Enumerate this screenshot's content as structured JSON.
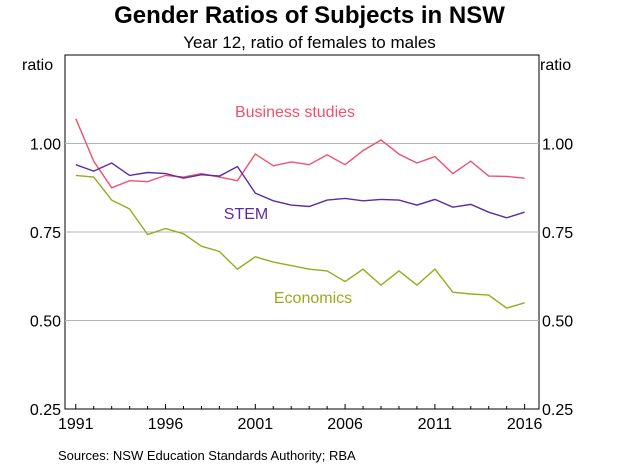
{
  "chart_data": {
    "type": "line",
    "title": "Gender Ratios of Subjects in NSW",
    "subtitle": "Year 12, ratio of females to males",
    "ylabel_left": "ratio",
    "ylabel_right": "ratio",
    "x": [
      1991,
      1992,
      1993,
      1994,
      1995,
      1996,
      1997,
      1998,
      1999,
      2000,
      2001,
      2002,
      2003,
      2004,
      2005,
      2006,
      2007,
      2008,
      2009,
      2010,
      2011,
      2012,
      2013,
      2014,
      2015,
      2016
    ],
    "xlim": [
      1990.4,
      2016.8
    ],
    "xticks": [
      1991,
      1996,
      2001,
      2006,
      2011,
      2016
    ],
    "ylim": [
      0.25,
      1.25
    ],
    "yticks": [
      0.25,
      0.5,
      0.75,
      1.0
    ],
    "ytick_labels": [
      "0.25",
      "0.50",
      "0.75",
      "1.00"
    ],
    "grid": true,
    "series": [
      {
        "name": "Business studies",
        "color": "#f0506e",
        "values": [
          1.07,
          0.95,
          0.875,
          0.895,
          0.892,
          0.91,
          0.905,
          0.915,
          0.905,
          0.895,
          0.97,
          0.937,
          0.948,
          0.94,
          0.968,
          0.94,
          0.98,
          1.01,
          0.97,
          0.945,
          0.963,
          0.915,
          0.95,
          0.908,
          0.907,
          0.902
        ]
      },
      {
        "name": "STEM",
        "color": "#5c2ba0",
        "values": [
          0.94,
          0.922,
          0.945,
          0.91,
          0.918,
          0.915,
          0.902,
          0.912,
          0.908,
          0.935,
          0.86,
          0.838,
          0.826,
          0.822,
          0.84,
          0.845,
          0.838,
          0.842,
          0.84,
          0.826,
          0.842,
          0.82,
          0.828,
          0.806,
          0.79,
          0.806
        ]
      },
      {
        "name": "Economics",
        "color": "#9aaa1e",
        "values": [
          0.91,
          0.905,
          0.84,
          0.815,
          0.743,
          0.76,
          0.745,
          0.71,
          0.695,
          0.645,
          0.68,
          0.665,
          0.655,
          0.645,
          0.64,
          0.61,
          0.645,
          0.6,
          0.64,
          0.6,
          0.645,
          0.58,
          0.575,
          0.572,
          0.535,
          0.55
        ]
      }
    ]
  },
  "source": "Sources:   NSW Education Standards Authority; RBA"
}
